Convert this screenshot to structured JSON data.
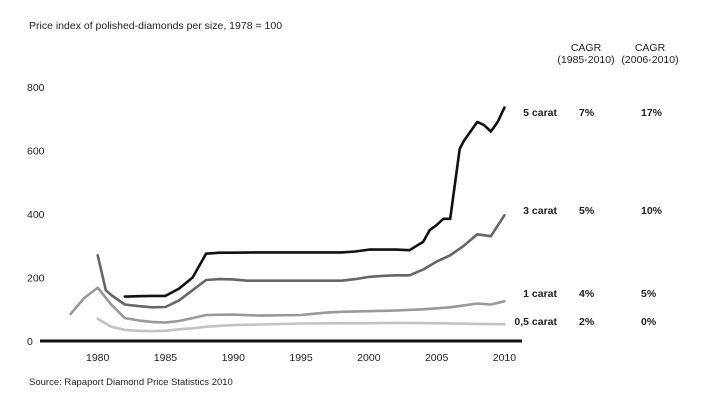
{
  "chart_data": {
    "type": "line",
    "title": "Price index of polished-diamonds per size, 1978 = 100",
    "source": "Source: Rapaport Diamond Price Statistics 2010",
    "xlabel": "",
    "ylabel": "",
    "xlim": [
      1977,
      2011
    ],
    "ylim": [
      0,
      800
    ],
    "x_ticks": [
      1980,
      1985,
      1990,
      1995,
      2000,
      2005,
      2010
    ],
    "y_ticks": [
      0,
      200,
      400,
      600,
      800
    ],
    "grid": false,
    "legend": "right",
    "table_headers": [
      [
        "CAGR",
        "(1985-2010)"
      ],
      [
        "CAGR",
        "(2006-2010)"
      ]
    ],
    "series": [
      {
        "name": "5 carat",
        "cagr_1985_2010": "7%",
        "cagr_2006_2010": "17%",
        "color": "#111111",
        "points": [
          [
            1982,
            140
          ],
          [
            1983,
            141
          ],
          [
            1984,
            142
          ],
          [
            1985,
            142
          ],
          [
            1986,
            165
          ],
          [
            1987,
            200
          ],
          [
            1988,
            275
          ],
          [
            1989,
            278
          ],
          [
            1990,
            278
          ],
          [
            1992,
            279
          ],
          [
            1995,
            279
          ],
          [
            1998,
            279
          ],
          [
            1999,
            282
          ],
          [
            2000,
            288
          ],
          [
            2001,
            288
          ],
          [
            2002,
            288
          ],
          [
            2003,
            286
          ],
          [
            2004,
            312
          ],
          [
            2004.5,
            350
          ],
          [
            2005,
            365
          ],
          [
            2005.5,
            385
          ],
          [
            2006,
            385
          ],
          [
            2006.7,
            605
          ],
          [
            2007,
            630
          ],
          [
            2008,
            690
          ],
          [
            2008.5,
            680
          ],
          [
            2009,
            660
          ],
          [
            2009.5,
            690
          ],
          [
            2010,
            735
          ]
        ]
      },
      {
        "name": "3 carat",
        "cagr_1985_2010": "5%",
        "cagr_2006_2010": "10%",
        "color": "#666666",
        "points": [
          [
            1980,
            270
          ],
          [
            1980.6,
            160
          ],
          [
            1981,
            145
          ],
          [
            1982,
            115
          ],
          [
            1983,
            110
          ],
          [
            1984,
            106
          ],
          [
            1985,
            107
          ],
          [
            1986,
            128
          ],
          [
            1987,
            160
          ],
          [
            1988,
            192
          ],
          [
            1989,
            195
          ],
          [
            1990,
            194
          ],
          [
            1991,
            190
          ],
          [
            1993,
            190
          ],
          [
            1995,
            190
          ],
          [
            1998,
            190
          ],
          [
            1999,
            195
          ],
          [
            2000,
            202
          ],
          [
            2001,
            205
          ],
          [
            2002,
            207
          ],
          [
            2003,
            207
          ],
          [
            2004,
            225
          ],
          [
            2005,
            250
          ],
          [
            2006,
            270
          ],
          [
            2007,
            300
          ],
          [
            2008,
            336
          ],
          [
            2009,
            330
          ],
          [
            2010,
            396
          ]
        ]
      },
      {
        "name": "1 carat",
        "cagr_1985_2010": "4%",
        "cagr_2006_2010": "5%",
        "color": "#999999",
        "points": [
          [
            1978,
            85
          ],
          [
            1979,
            135
          ],
          [
            1980,
            168
          ],
          [
            1981,
            115
          ],
          [
            1982,
            72
          ],
          [
            1983,
            65
          ],
          [
            1984,
            60
          ],
          [
            1985,
            58
          ],
          [
            1986,
            63
          ],
          [
            1987,
            72
          ],
          [
            1988,
            82
          ],
          [
            1990,
            83
          ],
          [
            1992,
            80
          ],
          [
            1995,
            82
          ],
          [
            1996,
            86
          ],
          [
            1997,
            90
          ],
          [
            1998,
            92
          ],
          [
            2000,
            94
          ],
          [
            2002,
            96
          ],
          [
            2004,
            100
          ],
          [
            2006,
            106
          ],
          [
            2007,
            112
          ],
          [
            2008,
            118
          ],
          [
            2009,
            115
          ],
          [
            2010,
            125
          ]
        ]
      },
      {
        "name": "0,5 carat",
        "cagr_1985_2010": "2%",
        "cagr_2006_2010": "0%",
        "color": "#c2c2c2",
        "points": [
          [
            1980,
            70
          ],
          [
            1981,
            45
          ],
          [
            1982,
            35
          ],
          [
            1983,
            32
          ],
          [
            1984,
            31
          ],
          [
            1985,
            32
          ],
          [
            1986,
            37
          ],
          [
            1987,
            40
          ],
          [
            1988,
            45
          ],
          [
            1990,
            50
          ],
          [
            1992,
            52
          ],
          [
            1995,
            55
          ],
          [
            1998,
            56
          ],
          [
            2000,
            56
          ],
          [
            2002,
            57
          ],
          [
            2005,
            56
          ],
          [
            2008,
            54
          ],
          [
            2010,
            53
          ]
        ]
      }
    ]
  }
}
